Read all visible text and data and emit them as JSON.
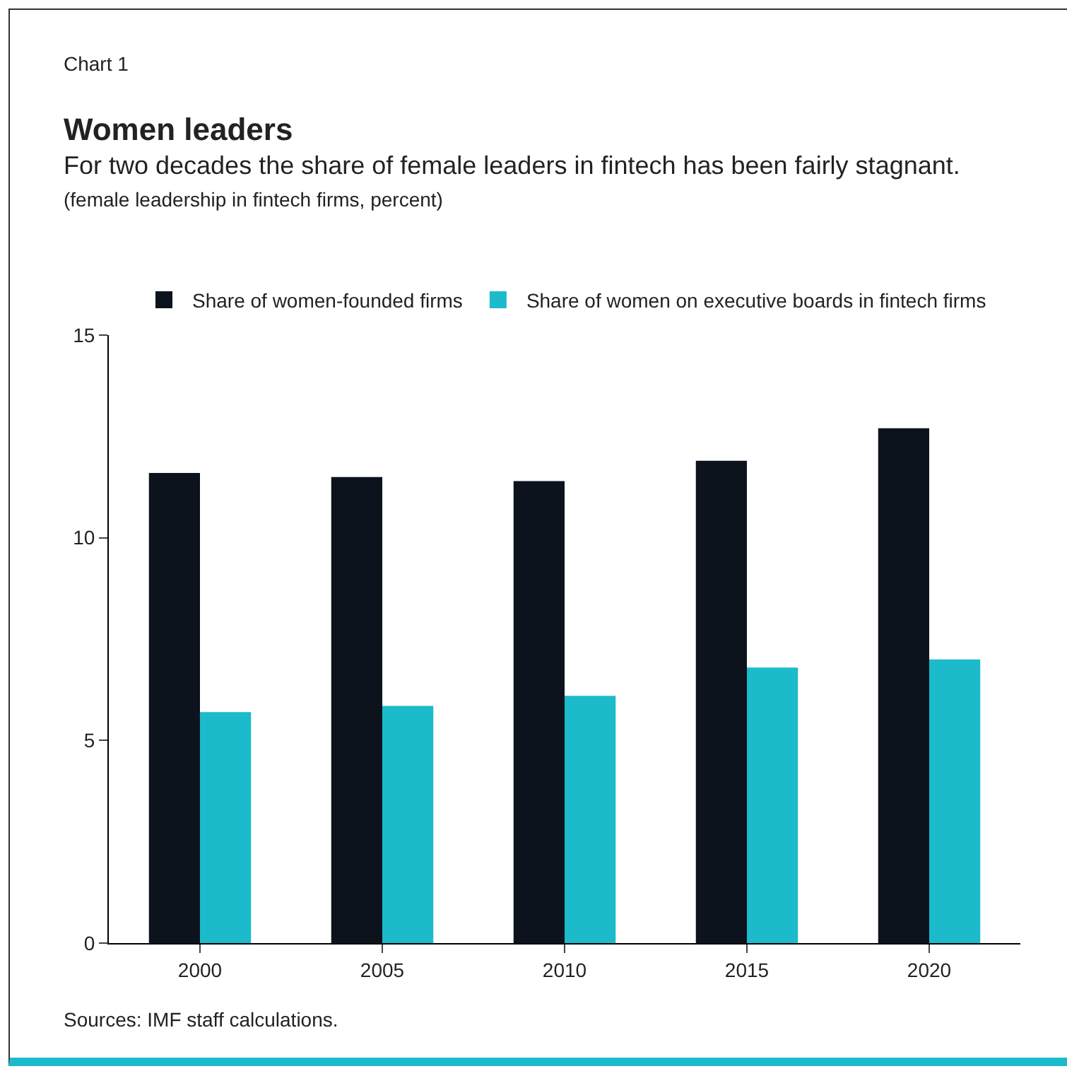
{
  "chart_data": {
    "type": "bar",
    "title": "Women leaders",
    "subtitle": "For two decades the share of female leaders in fintech has been fairly stagnant.",
    "annotations": [
      "Chart 1",
      "(female leadership in fintech firms, percent)",
      "Sources: IMF staff calculations."
    ],
    "categories": [
      "2000",
      "2005",
      "2010",
      "2015",
      "2020"
    ],
    "series": [
      {
        "name": "Share of women-founded firms",
        "color": "#0d131d",
        "values": [
          11.6,
          11.5,
          11.4,
          11.9,
          12.7
        ]
      },
      {
        "name": "Share of women on executive boards in fintech firms",
        "color": "#1bbbcc",
        "values": [
          5.7,
          5.85,
          6.1,
          6.8,
          7.0
        ]
      }
    ],
    "ylim": [
      0,
      15
    ],
    "yticks": [
      0,
      5,
      10,
      15
    ],
    "grid": false,
    "legend": "top"
  }
}
